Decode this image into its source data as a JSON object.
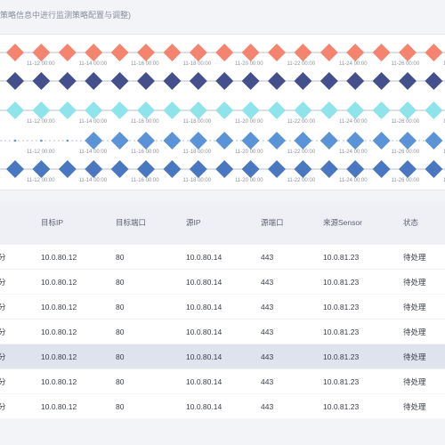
{
  "hint": "策略信息中进行监测策略配置与调整)",
  "timeline": {
    "rows": [
      {
        "color": "#f4846f",
        "line": "#b8c0ce",
        "labels": [
          "11-12 00:00",
          "11-14 00:00",
          "11-16 00:00",
          "11-18 00:00",
          "11-20 00:00",
          "11-22 00:00",
          "11-24 00:00",
          "11-26 00:00",
          "11-28 00"
        ]
      },
      {
        "color": "#44508c",
        "line": "#b8c0ce",
        "labels": []
      },
      {
        "color": "#8fe3ea",
        "line": "#b8c0ce",
        "labels": [
          "11-12 00:00",
          "11-14 00:00",
          "11-16 00:00",
          "11-18 00:00",
          "11-20 00:00",
          "11-22 00:00",
          "11-24 00:00",
          "11-26 00:00",
          "11-28 00"
        ]
      },
      {
        "color": "#5a93d6",
        "line": "#b8c0ce",
        "labels": [
          "11-12 00:00",
          "11-14 00:00",
          "11-16 00:00",
          "11-18 00:00",
          "11-20 00:00",
          "11-22 00:00",
          "11-24 00:00",
          "11-26 00:00",
          "11-28 00"
        ]
      },
      {
        "color": "#4a78c0",
        "line": "#b8c0ce",
        "labels": [
          "11-12 00:00",
          "11-14 00:00",
          "11-16 00:00",
          "11-18 00:00",
          "11-20 00:00",
          "11-22 00:00",
          "11-24 00:00",
          "11-26 00:00",
          "11-28 00"
        ]
      }
    ]
  },
  "table": {
    "headers": [
      "",
      "目标IP",
      "目标端口",
      "源IP",
      "源端口",
      "来源Sensor",
      "状态"
    ],
    "rows": [
      {
        "c0": "分",
        "dst_ip": "10.0.80.12",
        "dst_port": "80",
        "src_ip": "10.0.80.14",
        "src_port": "443",
        "sensor": "10.0.81.23",
        "status": "待处理"
      },
      {
        "c0": "分",
        "dst_ip": "10.0.80.12",
        "dst_port": "80",
        "src_ip": "10.0.80.14",
        "src_port": "443",
        "sensor": "10.0.81.23",
        "status": "待处理"
      },
      {
        "c0": "分",
        "dst_ip": "10.0.80.12",
        "dst_port": "80",
        "src_ip": "10.0.80.14",
        "src_port": "443",
        "sensor": "10.0.81.23",
        "status": "待处理"
      },
      {
        "c0": "分",
        "dst_ip": "10.0.80.12",
        "dst_port": "80",
        "src_ip": "10.0.80.14",
        "src_port": "443",
        "sensor": "10.0.81.23",
        "status": "待处理"
      },
      {
        "c0": "分",
        "dst_ip": "10.0.80.12",
        "dst_port": "80",
        "src_ip": "10.0.80.14",
        "src_port": "443",
        "sensor": "10.0.81.23",
        "status": "待处理"
      },
      {
        "c0": "分",
        "dst_ip": "10.0.80.12",
        "dst_port": "80",
        "src_ip": "10.0.80.14",
        "src_port": "443",
        "sensor": "10.0.81.23",
        "status": "待处理"
      },
      {
        "c0": "分",
        "dst_ip": "10.0.80.12",
        "dst_port": "80",
        "src_ip": "10.0.80.14",
        "src_port": "443",
        "sensor": "10.0.81.23",
        "status": "待处理"
      }
    ]
  }
}
